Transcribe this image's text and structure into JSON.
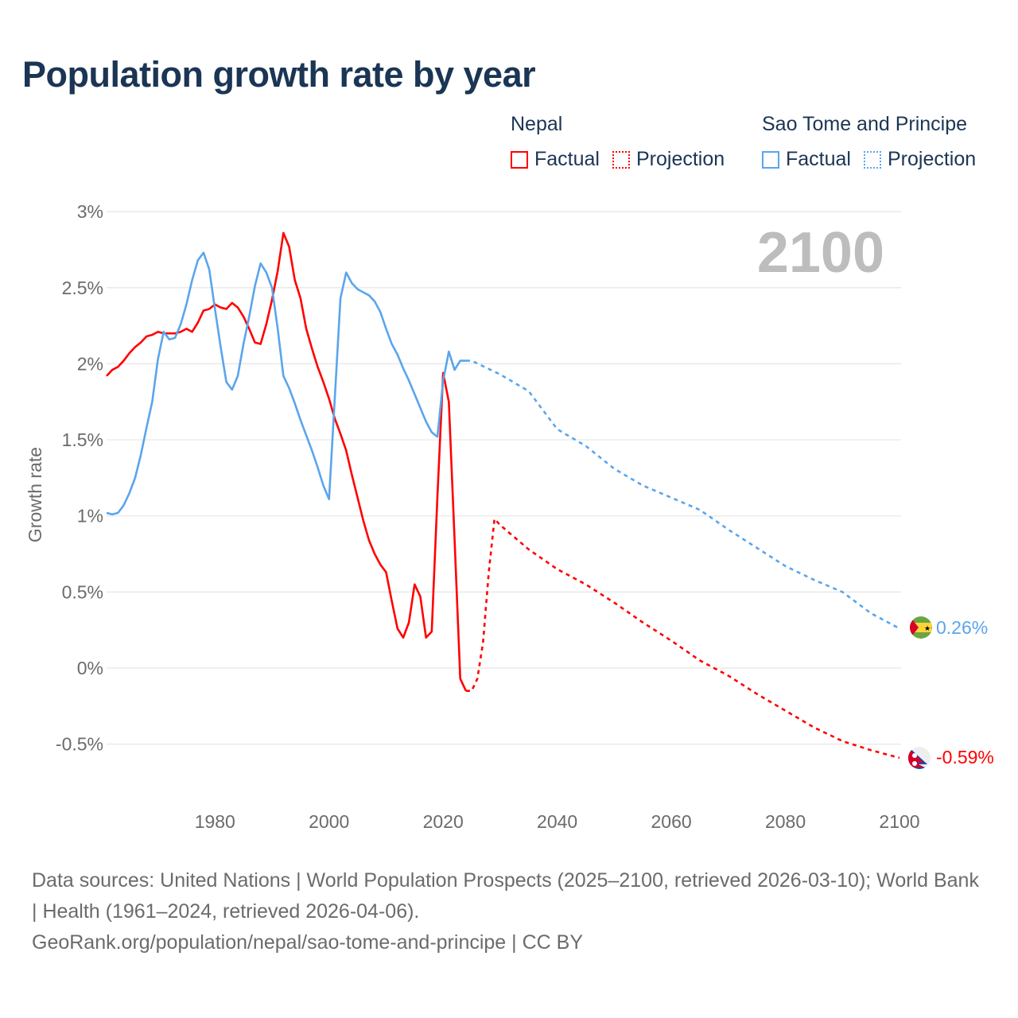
{
  "title": "Population growth rate by year",
  "legend": {
    "groups": [
      {
        "name": "Nepal",
        "color": "#ff0000",
        "factual": "Factual",
        "projection": "Projection"
      },
      {
        "name": "Sao Tome and Principe",
        "color": "#5aa5ec",
        "factual": "Factual",
        "projection": "Projection"
      }
    ]
  },
  "chart_data": {
    "type": "line",
    "title": "Population growth rate by year",
    "xlabel": "",
    "ylabel": "Growth rate",
    "current_year": "2100",
    "xlim": [
      1961,
      2100
    ],
    "ylim": [
      -0.75,
      3.1
    ],
    "y_ticks": [
      3,
      2.5,
      2,
      1.5,
      1,
      0.5,
      0,
      -0.5
    ],
    "y_tick_labels": [
      "3%",
      "2.5%",
      "2%",
      "1.5%",
      "1%",
      "0.5%",
      "0%",
      "-0.5%"
    ],
    "x_ticks": [
      1980,
      2000,
      2020,
      2040,
      2060,
      2080,
      2100
    ],
    "x_tick_labels": [
      "1980",
      "2000",
      "2020",
      "2040",
      "2060",
      "2080",
      "2100"
    ],
    "grid": true,
    "series": [
      {
        "name": "Nepal",
        "color": "#ff0000",
        "end_label": "-0.59%",
        "factual": {
          "start_year": 1961,
          "values": [
            1.92,
            1.96,
            1.98,
            2.02,
            2.07,
            2.11,
            2.14,
            2.18,
            2.19,
            2.21,
            2.2,
            2.2,
            2.2,
            2.21,
            2.23,
            2.21,
            2.27,
            2.35,
            2.36,
            2.39,
            2.37,
            2.36,
            2.4,
            2.37,
            2.31,
            2.23,
            2.14,
            2.13,
            2.26,
            2.42,
            2.61,
            2.86,
            2.77,
            2.55,
            2.43,
            2.23,
            2.1,
            1.98,
            1.88,
            1.77,
            1.64,
            1.54,
            1.43,
            1.27,
            1.12,
            0.97,
            0.84,
            0.75,
            0.68,
            0.63,
            0.44,
            0.26,
            0.2,
            0.3,
            0.55,
            0.47,
            0.2,
            0.24,
            1.13,
            1.94,
            1.75,
            0.85,
            -0.07,
            -0.15
          ]
        },
        "projection": {
          "x": [
            2024,
            2025,
            2026,
            2027,
            2028,
            2029,
            2030,
            2035,
            2040,
            2045,
            2050,
            2055,
            2060,
            2065,
            2070,
            2075,
            2080,
            2085,
            2090,
            2095,
            2100
          ],
          "values": [
            -0.15,
            -0.15,
            -0.07,
            0.17,
            0.63,
            0.98,
            0.94,
            0.78,
            0.65,
            0.55,
            0.43,
            0.3,
            0.18,
            0.05,
            -0.05,
            -0.17,
            -0.28,
            -0.39,
            -0.48,
            -0.54,
            -0.59
          ]
        }
      },
      {
        "name": "Sao Tome and Principe",
        "color": "#5aa5ec",
        "end_label": "0.26%",
        "factual": {
          "start_year": 1961,
          "values": [
            1.02,
            1.01,
            1.02,
            1.07,
            1.15,
            1.25,
            1.4,
            1.58,
            1.75,
            2.03,
            2.21,
            2.16,
            2.17,
            2.26,
            2.39,
            2.55,
            2.68,
            2.73,
            2.62,
            2.36,
            2.11,
            1.88,
            1.83,
            1.92,
            2.13,
            2.31,
            2.51,
            2.66,
            2.6,
            2.5,
            2.23,
            1.92,
            1.84,
            1.74,
            1.63,
            1.53,
            1.43,
            1.32,
            1.2,
            1.11,
            1.77,
            2.43,
            2.6,
            2.53,
            2.49,
            2.47,
            2.45,
            2.41,
            2.34,
            2.23,
            2.13,
            2.06,
            1.97,
            1.89,
            1.8,
            1.71,
            1.62,
            1.55,
            1.52,
            1.89,
            2.08,
            1.96,
            2.02,
            2.02
          ]
        },
        "projection": {
          "x": [
            2024,
            2025,
            2030,
            2035,
            2040,
            2045,
            2050,
            2055,
            2060,
            2065,
            2070,
            2075,
            2080,
            2085,
            2090,
            2095,
            2100
          ],
          "values": [
            2.02,
            2.02,
            1.93,
            1.82,
            1.57,
            1.46,
            1.31,
            1.2,
            1.12,
            1.04,
            0.91,
            0.79,
            0.67,
            0.58,
            0.5,
            0.36,
            0.26
          ]
        }
      }
    ]
  },
  "footer": {
    "sources": "Data sources: United Nations | World Population Prospects (2025–2100, retrieved 2026-03-10); World Bank | Health (1961–2024, retrieved 2026-04-06).",
    "credit": "GeoRank.org/population/nepal/sao-tome-and-principe | CC BY"
  }
}
